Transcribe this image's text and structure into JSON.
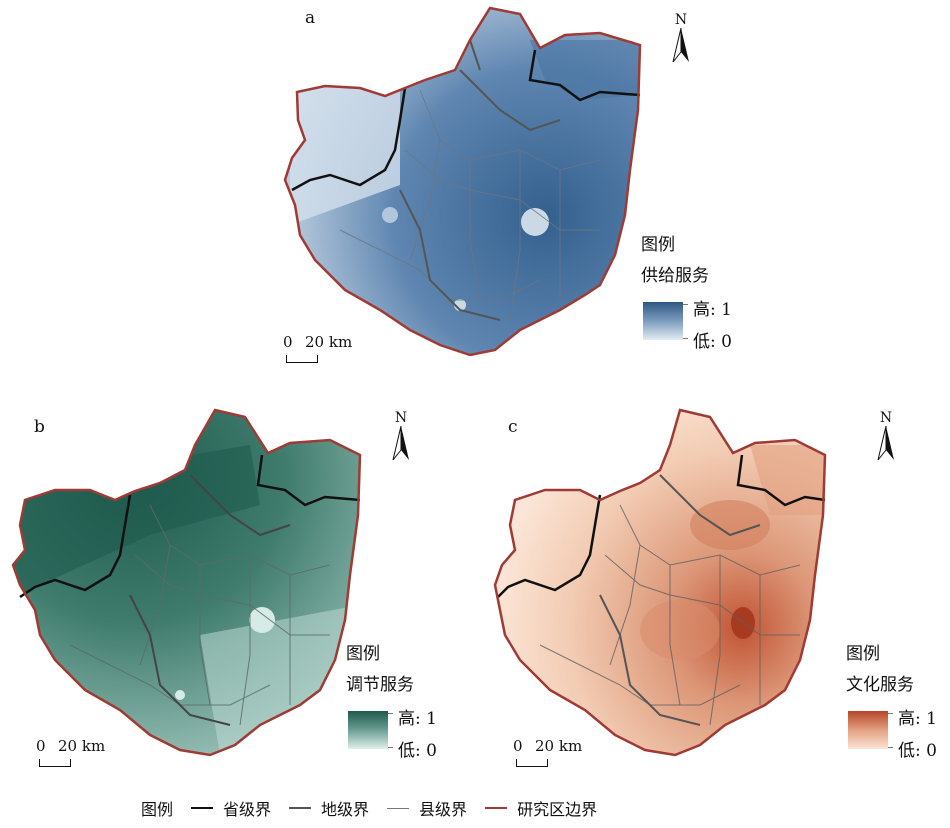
{
  "panels": [
    {
      "label": "a",
      "north": "N",
      "scale_zero": "0",
      "scale_text": "20 km",
      "legend_title": "图例",
      "legend_name": "供给服务",
      "legend_high": "高: 1",
      "legend_low": "低: 0",
      "colors": {
        "high": "#2d5683",
        "low": "#e3ecf3",
        "mid": "#7d9dbf"
      }
    },
    {
      "label": "b",
      "north": "N",
      "scale_zero": "0",
      "scale_text": "20 km",
      "legend_title": "图例",
      "legend_name": "调节服务",
      "legend_high": "高: 1",
      "legend_low": "低: 0",
      "colors": {
        "high": "#1d5a4c",
        "low": "#e0efec",
        "mid": "#6c9f94"
      }
    },
    {
      "label": "c",
      "north": "N",
      "scale_zero": "0",
      "scale_text": "20 km",
      "legend_title": "图例",
      "legend_name": "文化服务",
      "legend_high": "高: 1",
      "legend_low": "低: 0",
      "colors": {
        "high": "#b5452a",
        "low": "#fbe5d6",
        "mid": "#e3a080"
      }
    }
  ],
  "bottom_legend": {
    "title": "图例",
    "items": [
      {
        "label": "省级界",
        "color": "#111111",
        "style": "solid"
      },
      {
        "label": "地级界",
        "color": "#555555",
        "style": "solid"
      },
      {
        "label": "县级界",
        "color": "#777777",
        "style": "thin"
      },
      {
        "label": "研究区边界",
        "color": "#a03a34",
        "style": "solid"
      }
    ]
  },
  "colors": {
    "boundary": "#a03a34",
    "province": "#111111",
    "prefecture": "#555555",
    "county": "#777777"
  }
}
